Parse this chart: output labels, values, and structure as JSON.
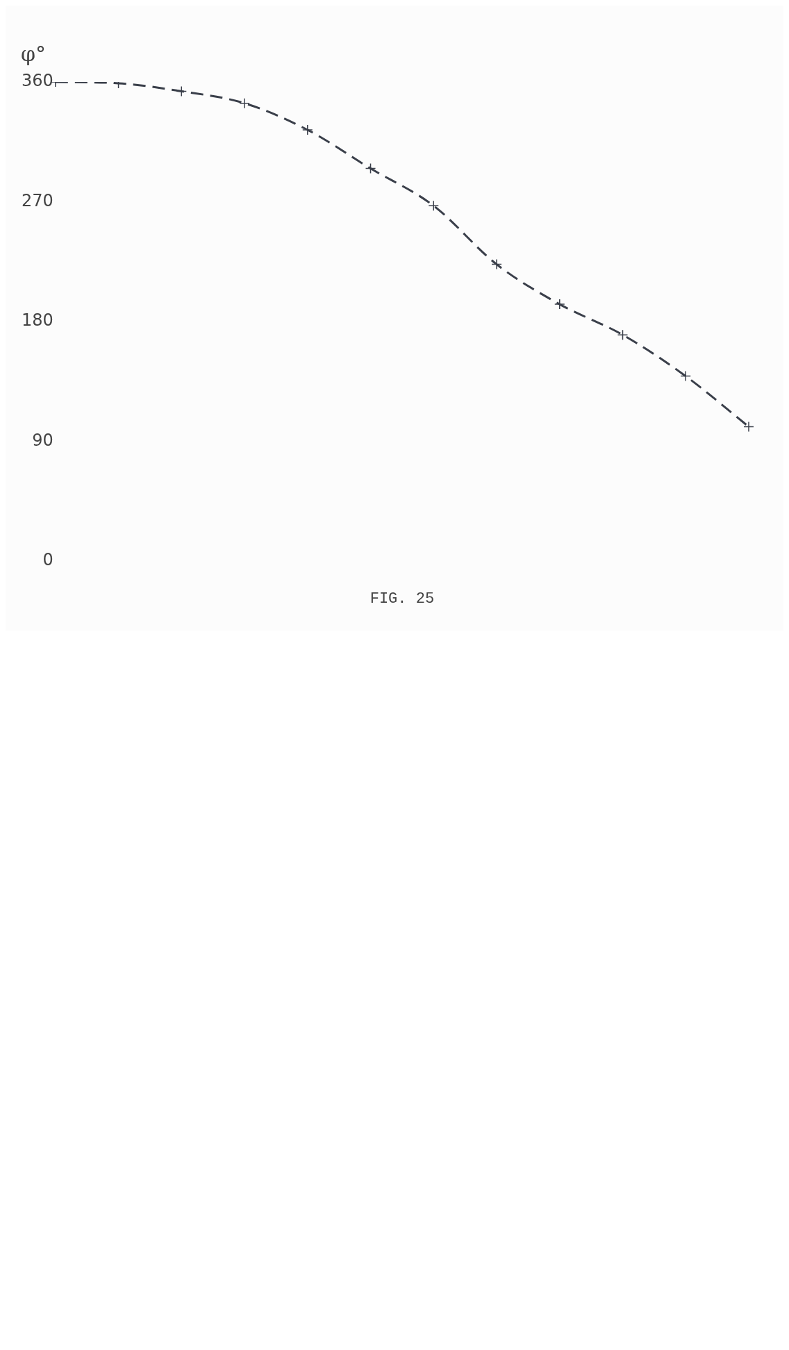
{
  "chart_data": {
    "type": "line",
    "ylabel": "φ°",
    "annotations": [
      "FIG. 25"
    ],
    "categories": [
      null,
      null,
      null,
      null,
      null,
      null,
      null,
      null,
      null,
      null,
      null,
      null
    ],
    "series": [
      {
        "color": "#3a3f4a",
        "values": [
          360,
          359,
          353,
          344,
          324,
          295,
          267,
          223,
          193,
          170,
          139,
          101
        ]
      }
    ],
    "ylim": [
      0,
      360
    ],
    "yticks": [
      0,
      90,
      180,
      270,
      360
    ],
    "grid": false,
    "legend": false,
    "tick_labels": "y",
    "marker": "cross",
    "line_style": "dashed"
  }
}
